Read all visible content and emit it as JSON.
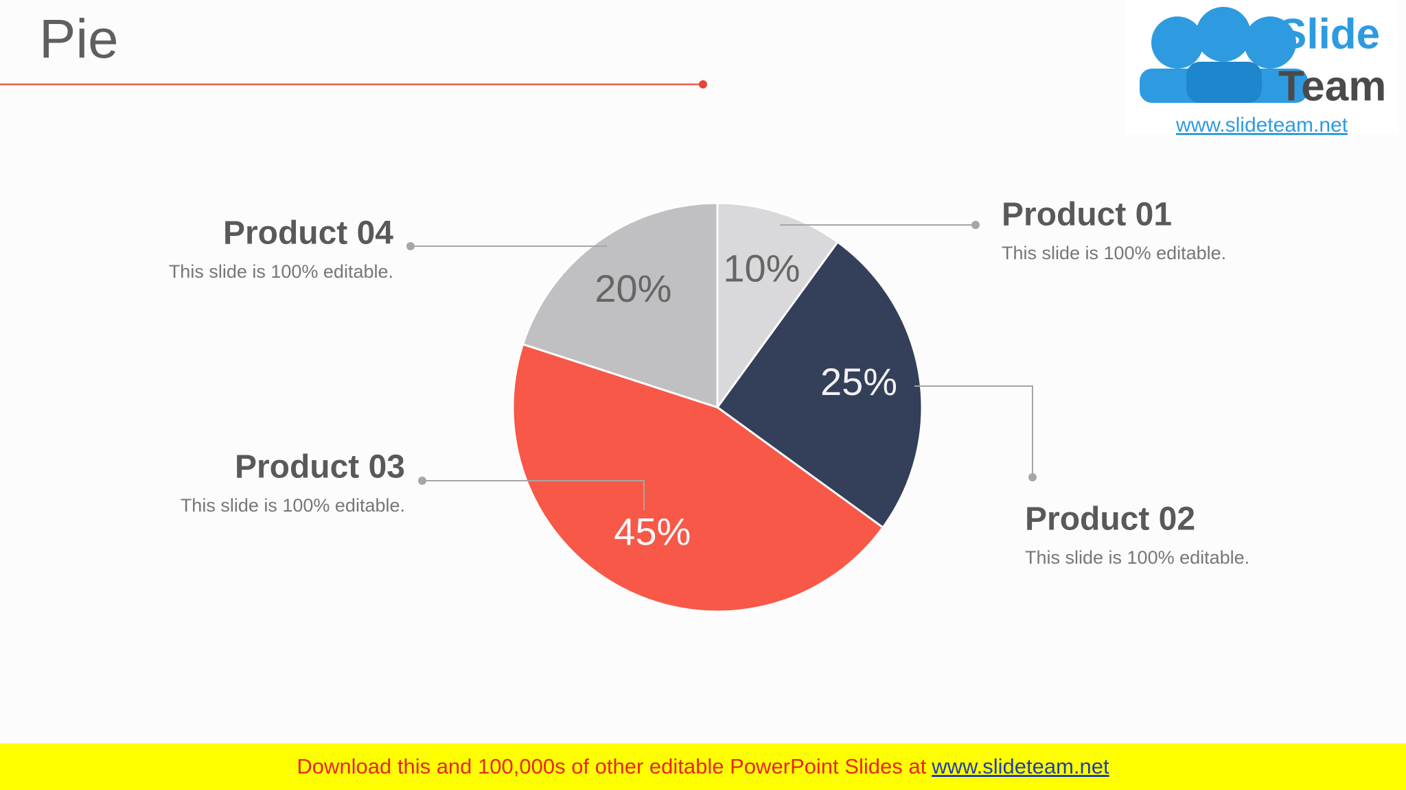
{
  "chart_data": {
    "type": "pie",
    "title": "Pie",
    "categories": [
      "Product 01",
      "Product 02",
      "Product 03",
      "Product 04"
    ],
    "values": [
      10,
      25,
      45,
      20
    ],
    "value_labels": [
      "10%",
      "25%",
      "45%",
      "20%"
    ],
    "colors": [
      "#d9d8da",
      "#34405a",
      "#f85847",
      "#c0bfc1"
    ],
    "descriptions": [
      "This slide is 100% editable.",
      "This slide is 100% editable.",
      "This slide is 100% editable.",
      "This slide is 100% editable."
    ]
  },
  "logo": {
    "line1": "Slide",
    "line2": "Team",
    "url": "www.slideteam.net"
  },
  "footer": {
    "text": "Download this and 100,000s of other editable PowerPoint Slides at",
    "link": "www.slideteam.net"
  }
}
